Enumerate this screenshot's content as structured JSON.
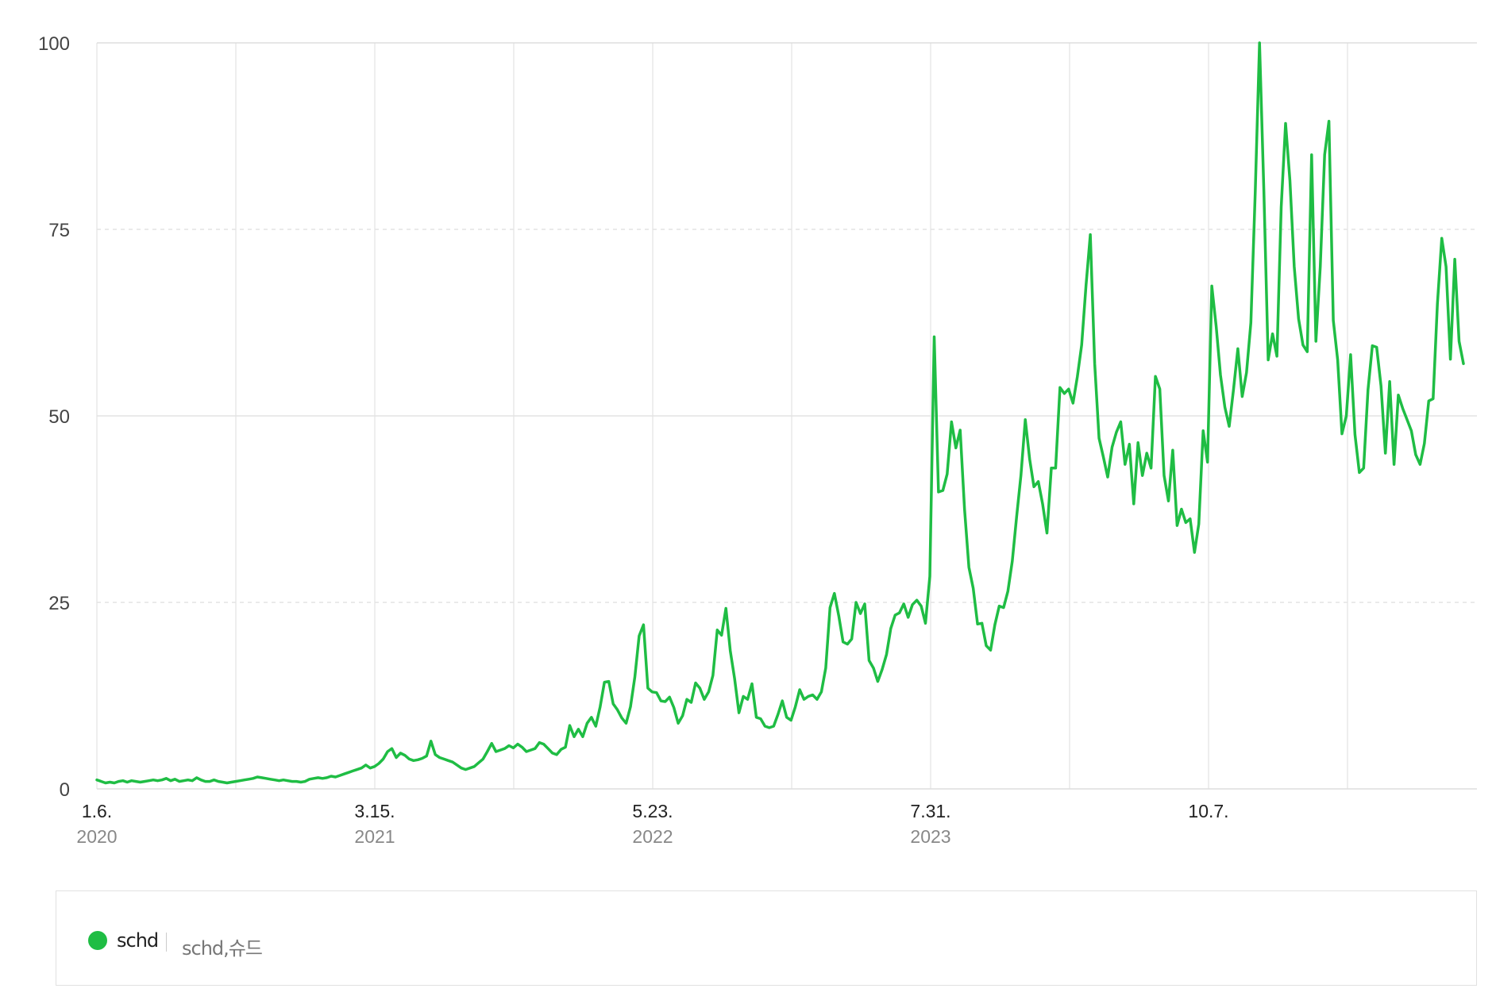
{
  "chart_data": {
    "type": "line",
    "title": "",
    "xlabel": "",
    "ylabel": "",
    "ylim": [
      0,
      100
    ],
    "y_ticks": [
      "0",
      "25",
      "50",
      "75",
      "100"
    ],
    "x_tick_labels": [
      {
        "date": "1.6.",
        "year": "2020"
      },
      {
        "date": "3.15.",
        "year": "2021"
      },
      {
        "date": "5.23.",
        "year": "2022"
      },
      {
        "date": "7.31.",
        "year": "2023"
      },
      {
        "date": "10.7.",
        "year": ""
      }
    ],
    "grid": true,
    "series": [
      {
        "name": "schd",
        "color": "#1fbd44",
        "values": [
          1.2,
          1.0,
          0.8,
          0.9,
          0.8,
          1.0,
          1.1,
          0.9,
          1.1,
          1.0,
          0.9,
          1.0,
          1.1,
          1.2,
          1.1,
          1.2,
          1.4,
          1.1,
          1.3,
          1.0,
          1.1,
          1.2,
          1.1,
          1.5,
          1.2,
          1.0,
          1.0,
          1.2,
          1.0,
          0.9,
          0.8,
          0.9,
          1.0,
          1.1,
          1.2,
          1.3,
          1.4,
          1.6,
          1.5,
          1.4,
          1.3,
          1.2,
          1.1,
          1.2,
          1.1,
          1.0,
          1.0,
          0.9,
          1.0,
          1.3,
          1.4,
          1.5,
          1.4,
          1.5,
          1.7,
          1.6,
          1.8,
          2.0,
          2.2,
          2.4,
          2.6,
          2.8,
          3.2,
          2.8,
          3.0,
          3.4,
          4.0,
          5.0,
          5.4,
          4.2,
          4.8,
          4.5,
          4.0,
          3.8,
          3.9,
          4.1,
          4.4,
          6.4,
          4.6,
          4.2,
          4.0,
          3.8,
          3.6,
          3.2,
          2.8,
          2.6,
          2.8,
          3.0,
          3.5,
          4.0,
          5.0,
          6.1,
          5.0,
          5.2,
          5.4,
          5.8,
          5.5,
          6.0,
          5.6,
          5.0,
          5.2,
          5.4,
          6.2,
          6.0,
          5.4,
          4.8,
          4.6,
          5.3,
          5.6,
          8.5,
          7.0,
          8.0,
          7.0,
          8.8,
          9.6,
          8.4,
          11.0,
          14.3,
          14.4,
          11.4,
          10.6,
          9.5,
          8.8,
          11.0,
          15.0,
          20.5,
          22.0,
          13.5,
          13.0,
          12.9,
          11.8,
          11.7,
          12.3,
          10.9,
          8.8,
          9.8,
          12.0,
          11.6,
          14.2,
          13.5,
          12.0,
          13.0,
          15.2,
          21.3,
          20.6,
          24.2,
          18.5,
          14.8,
          10.2,
          12.4,
          12.0,
          14.1,
          9.6,
          9.4,
          8.4,
          8.2,
          8.4,
          10.0,
          11.8,
          9.6,
          9.2,
          11.0,
          13.3,
          12.0,
          12.4,
          12.6,
          12.0,
          13.0,
          16.2,
          24.3,
          26.2,
          23.2,
          19.7,
          19.4,
          20.1,
          25.0,
          23.5,
          24.8,
          17.2,
          16.2,
          14.4,
          16.0,
          18.0,
          21.5,
          23.3,
          23.6,
          24.8,
          23.0,
          24.7,
          25.3,
          24.5,
          22.2,
          28.5,
          60.6,
          39.8,
          40.0,
          42.2,
          49.2,
          45.7,
          48.1,
          37.5,
          29.7,
          26.9,
          22.1,
          22.2,
          19.2,
          18.6,
          22.0,
          24.5,
          24.3,
          26.5,
          30.5,
          36.5,
          42.0,
          49.5,
          44.2,
          40.5,
          41.2,
          38.2,
          34.3,
          43.0,
          43.0,
          53.8,
          53.0,
          53.6,
          51.7,
          55.2,
          59.5,
          67.5,
          74.3,
          57.0,
          47.0,
          44.5,
          41.8,
          45.8,
          47.8,
          49.2,
          43.5,
          46.2,
          38.2,
          46.4,
          42.0,
          45.0,
          43.0,
          55.3,
          53.6,
          42.0,
          38.6,
          45.4,
          35.3,
          37.5,
          35.7,
          36.2,
          31.7,
          35.5,
          48.0,
          43.8,
          67.4,
          62.0,
          55.5,
          51.2,
          48.6,
          53.5,
          59.0,
          52.6,
          55.8,
          62.5,
          80.0,
          100.0,
          80.0,
          57.5,
          61.0,
          58.0,
          78.0,
          89.2,
          81.5,
          70.0,
          63.0,
          59.5,
          58.6,
          85.0,
          60.0,
          70.0,
          85.0,
          89.5,
          62.8,
          57.5,
          47.6,
          50.0,
          58.2,
          47.5,
          42.4,
          43.0,
          53.5,
          59.4,
          59.2,
          54.0,
          45.0,
          54.6,
          43.5,
          52.8,
          51.0,
          49.5,
          48.0,
          44.8,
          43.5,
          46.3,
          52.0,
          52.3,
          65.0,
          73.8,
          70.0,
          57.6,
          71.0,
          60.0,
          57.0
        ]
      }
    ]
  },
  "legend": {
    "series_name": "schd",
    "keywords": "schd,슈드",
    "dot_color": "#1fbd44"
  }
}
